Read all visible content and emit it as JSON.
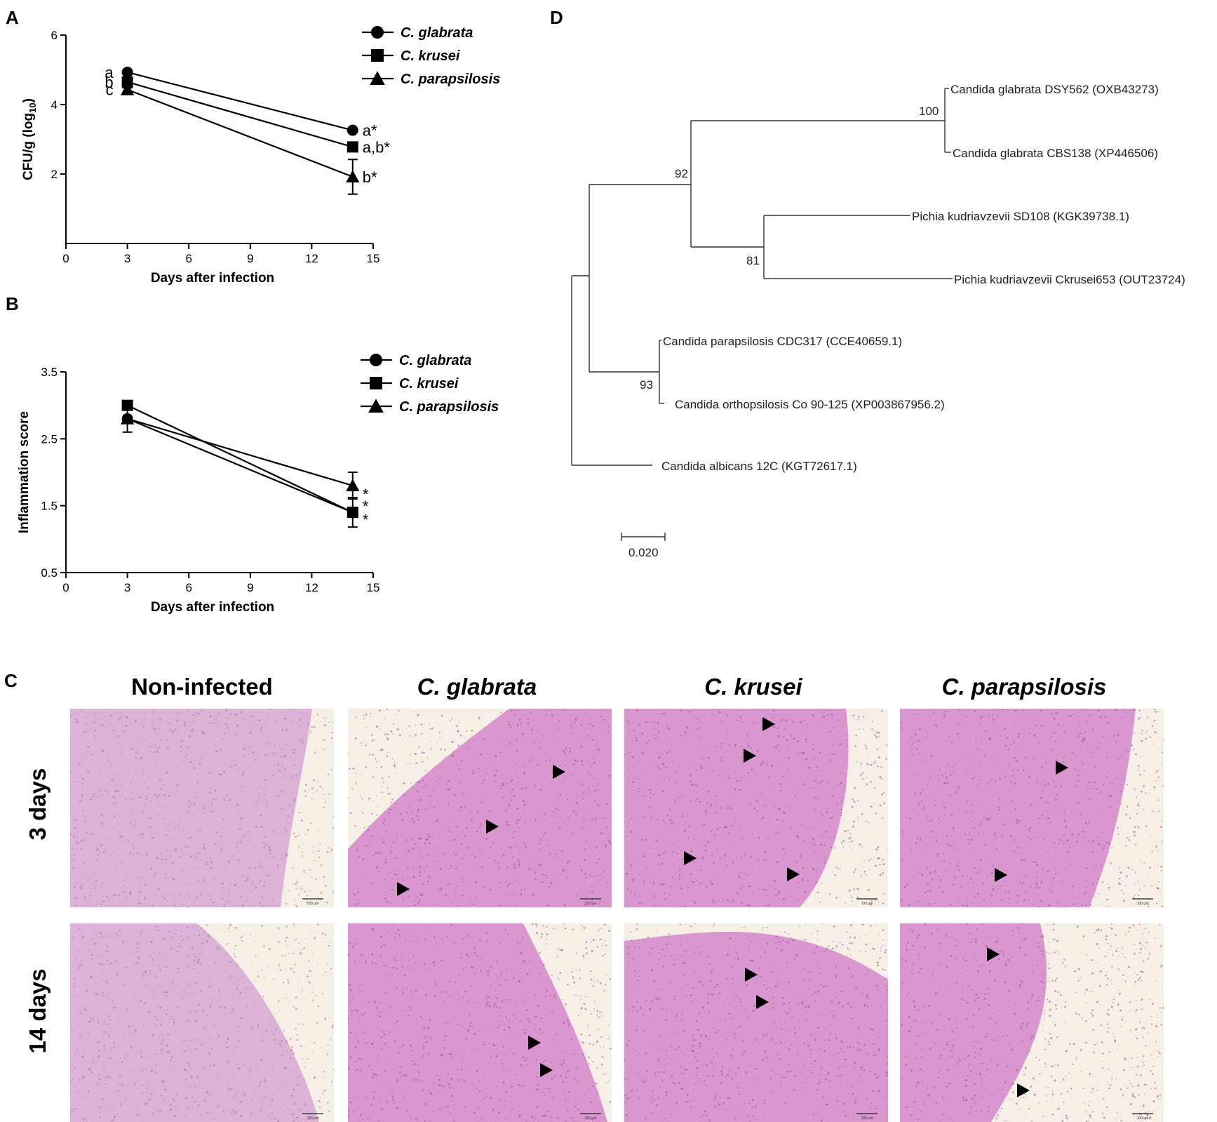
{
  "panels": {
    "a": "A",
    "b": "B",
    "c": "C",
    "d": "D"
  },
  "chart_data": [
    {
      "type": "line",
      "panel": "A",
      "xlabel": "Days after infection",
      "ylabel_main": "CFU/g (log",
      "ylabel_sub": "10",
      "ylabel_end": ")",
      "xlim": [
        0,
        15
      ],
      "ylim": [
        0,
        6
      ],
      "xticks": [
        0,
        3,
        6,
        9,
        12,
        15
      ],
      "yticks": [
        2,
        4,
        6
      ],
      "x": [
        3,
        14
      ],
      "series": [
        {
          "name": "C. glabrata",
          "marker": "circle",
          "values": [
            4.93,
            3.26
          ],
          "err": [
            0.06,
            0.06
          ],
          "labels": [
            "a",
            "a*"
          ]
        },
        {
          "name": "C. krusei",
          "marker": "square",
          "values": [
            4.65,
            2.78
          ],
          "err": [
            0.06,
            0.06
          ],
          "labels": [
            "b",
            "a,b*"
          ]
        },
        {
          "name": "C. parapsilosis",
          "marker": "triangle",
          "values": [
            4.43,
            1.92
          ],
          "err": [
            0.05,
            0.5
          ],
          "labels": [
            "c",
            "b*"
          ]
        }
      ],
      "legend": "top-right"
    },
    {
      "type": "line",
      "panel": "B",
      "xlabel": "Days after infection",
      "ylabel": "Inflammation score",
      "xlim": [
        0,
        15
      ],
      "ylim": [
        0.5,
        3.5
      ],
      "xticks": [
        0,
        3,
        6,
        9,
        12,
        15
      ],
      "yticks": [
        "0.5",
        "1.5",
        "2.5",
        "3.5"
      ],
      "x": [
        3,
        14
      ],
      "series": [
        {
          "name": "C. glabrata",
          "marker": "circle",
          "values": [
            2.8,
            1.4
          ],
          "err": [
            0.2,
            0.0
          ],
          "labels": [
            "",
            "*"
          ]
        },
        {
          "name": "C. krusei",
          "marker": "square",
          "values": [
            3.0,
            1.4
          ],
          "err": [
            0.0,
            0.22
          ],
          "labels": [
            "",
            "*"
          ]
        },
        {
          "name": "C. parapsilosis",
          "marker": "triangle",
          "values": [
            2.8,
            1.8
          ],
          "err": [
            0.0,
            0.2
          ],
          "labels": [
            "",
            "*"
          ]
        }
      ],
      "legend": "top-right"
    }
  ],
  "tree": {
    "leaves": [
      "Candida glabrata DSY562 (OXB43273)",
      "Candida glabrata CBS138 (XP446506)",
      "Pichia kudriavzevii SD108 (KGK39738.1)",
      "Pichia kudriavzevii Ckrusei653 (OUT23724)",
      "Candida parapsilosis CDC317 (CCE40659.1)",
      "Candida orthopsilosis Co 90-125 (XP003867956.2)",
      "Candida albicans 12C (KGT72617.1)"
    ],
    "bootstrap": [
      "100",
      "92",
      "81",
      "93"
    ],
    "scale_label": "0.020"
  },
  "histology": {
    "columns": [
      "Non-infected",
      "C. glabrata",
      "C. krusei",
      "C. parapsilosis"
    ],
    "rows": [
      "3 days",
      "14 days"
    ],
    "scalebar_label": "100 μm"
  }
}
